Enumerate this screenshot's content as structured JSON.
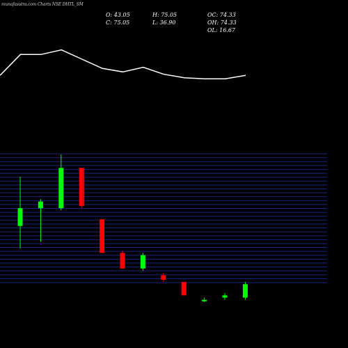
{
  "header": {
    "brand": "munafasutra.com",
    "title": "Charts NSE DHTL_SM"
  },
  "ohlc": {
    "open_label": "O: 43.05",
    "close_label": "C: 75.05",
    "high_label": "H: 75.05",
    "low_label": "L: 36.90",
    "oc_label": "OC: 74.33",
    "oh_label": "OH: 74.33",
    "ol_label": "OL: 16.67"
  },
  "colors": {
    "background": "#000000",
    "up": "#00ff00",
    "down": "#ff0000",
    "line": "#ffffff",
    "grid": "#1a237e"
  },
  "chart_data": [
    {
      "type": "line",
      "series": [
        {
          "values": [
            115,
            133,
            133,
            137,
            129,
            121,
            118,
            122,
            116,
            113,
            112,
            112,
            115
          ]
        }
      ],
      "ylim": [
        90,
        150
      ]
    },
    {
      "type": "candlestick",
      "candles": [
        {
          "open": 138,
          "high": 160,
          "low": 128,
          "close": 146
        },
        {
          "open": 146,
          "high": 150,
          "low": 131,
          "close": 149
        },
        {
          "open": 146,
          "high": 170,
          "low": 145,
          "close": 164
        },
        {
          "open": 164,
          "high": 164,
          "low": 146,
          "close": 147
        },
        {
          "open": 141,
          "high": 141,
          "low": 126,
          "close": 126
        },
        {
          "open": 126,
          "high": 127,
          "low": 119,
          "close": 119
        },
        {
          "open": 119,
          "high": 126,
          "low": 118,
          "close": 125
        },
        {
          "open": 116,
          "high": 117,
          "low": 113,
          "close": 114
        },
        {
          "open": 113,
          "high": 113,
          "low": 107,
          "close": 107
        },
        {
          "open": 105,
          "high": 106,
          "low": 104,
          "close": 105
        },
        {
          "open": 106,
          "high": 108,
          "low": 105,
          "close": 107
        },
        {
          "open": 106,
          "high": 113,
          "low": 105,
          "close": 112
        }
      ],
      "ylim": [
        104,
        170
      ]
    }
  ]
}
